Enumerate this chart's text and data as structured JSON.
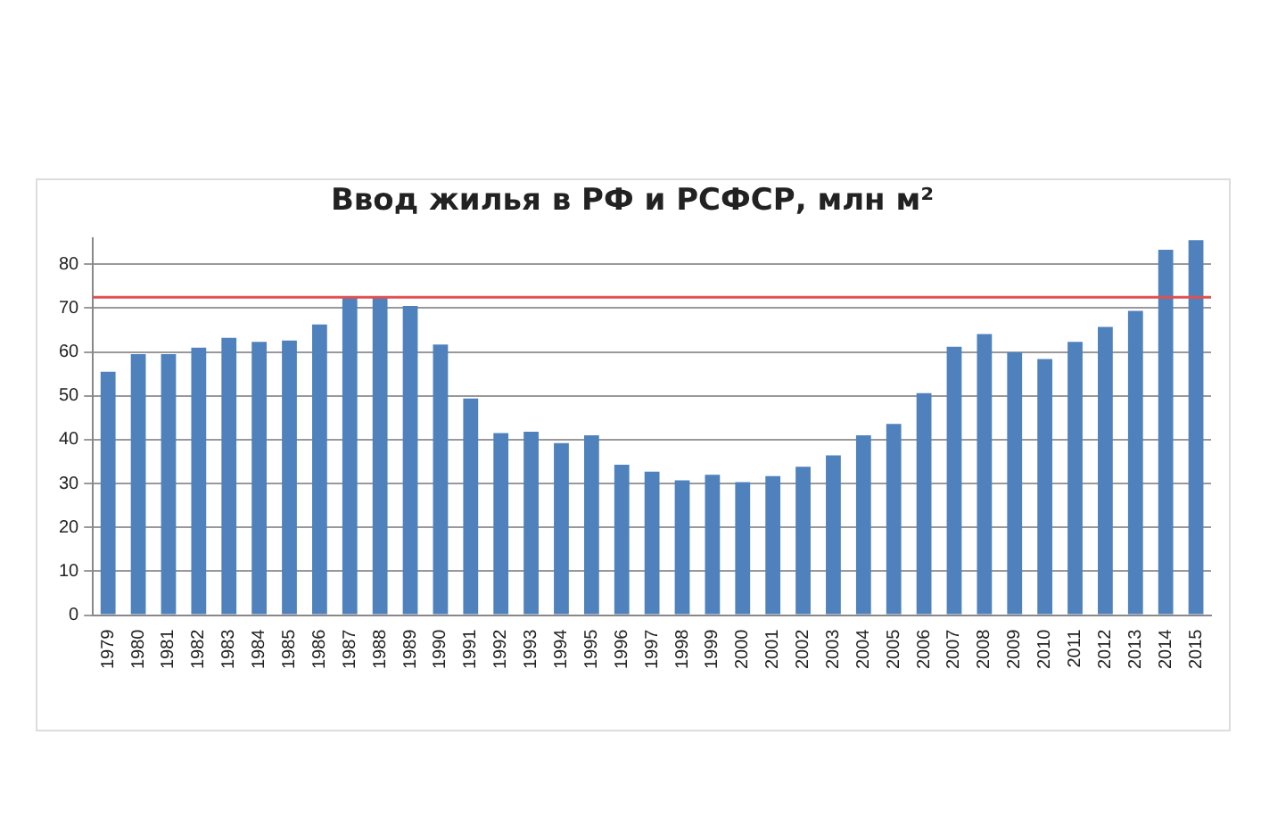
{
  "chart_data": {
    "type": "bar",
    "title": "Ввод жилья в РФ и РСФСР, млн м²",
    "categories": [
      "1979",
      "1980",
      "1981",
      "1982",
      "1983",
      "1984",
      "1985",
      "1986",
      "1987",
      "1988",
      "1989",
      "1990",
      "1991",
      "1992",
      "1993",
      "1994",
      "1995",
      "1996",
      "1997",
      "1998",
      "1999",
      "2000",
      "2001",
      "2002",
      "2003",
      "2004",
      "2005",
      "2006",
      "2007",
      "2008",
      "2009",
      "2010",
      "2011",
      "2012",
      "2013",
      "2014",
      "2015"
    ],
    "values": [
      55.5,
      59.5,
      59.5,
      61,
      63.2,
      62.3,
      62.6,
      66.3,
      72.5,
      72.5,
      70.5,
      61.7,
      49.4,
      41.5,
      41.8,
      39.2,
      41,
      34.3,
      32.7,
      30.7,
      32,
      30.3,
      31.7,
      33.8,
      36.4,
      41,
      43.6,
      50.6,
      61.2,
      64.1,
      59.9,
      58.4,
      62.3,
      65.7,
      69.4,
      83.3,
      85.5
    ],
    "color": "#4f81bd",
    "ylim": [
      0,
      86
    ],
    "yticks": [
      0,
      10,
      20,
      30,
      40,
      50,
      60,
      70,
      80
    ],
    "grid": "y",
    "legend": false,
    "ref_lines": [
      {
        "axis": "y",
        "value": 72.5,
        "color": "#e05050"
      }
    ]
  }
}
